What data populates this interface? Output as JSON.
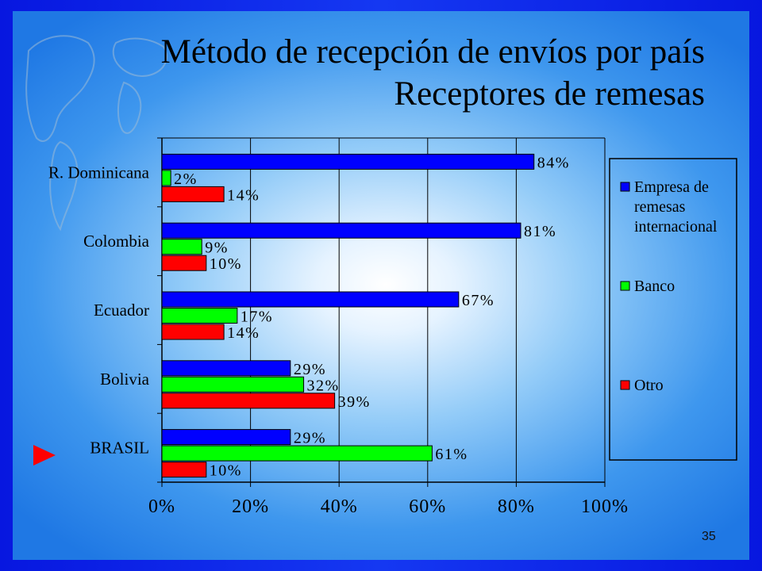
{
  "slide": {
    "title_line1": "Método de recepción de envíos por país",
    "title_line2": "Receptores de remesas",
    "page_number": "35",
    "pointer_icon": "triangle-right-red",
    "pointer_color": "#ff0000"
  },
  "colors": {
    "frame": "#0a1ee8",
    "series": [
      "#0000ff",
      "#00ff00",
      "#ff0000"
    ]
  },
  "chart_data": {
    "type": "bar",
    "orientation": "horizontal",
    "categories": [
      "R. Dominicana",
      "Colombia",
      "Ecuador",
      "Bolivia",
      "BRASIL"
    ],
    "series": [
      {
        "name": "Empresa de remesas internacional",
        "legend_lines": [
          "Empresa de",
          "remesas",
          "internacional"
        ],
        "values": [
          84,
          81,
          67,
          29,
          29
        ],
        "labels": [
          "84%",
          "81%",
          "67%",
          "29%",
          "29%"
        ]
      },
      {
        "name": "Banco",
        "legend_lines": [
          "Banco"
        ],
        "values": [
          2,
          9,
          17,
          32,
          61
        ],
        "labels": [
          "2%",
          "9%",
          "17%",
          "32%",
          "61%"
        ]
      },
      {
        "name": "Otro",
        "legend_lines": [
          "Otro"
        ],
        "values": [
          14,
          10,
          14,
          39,
          10
        ],
        "labels": [
          "14%",
          "10%",
          "14%",
          "39%",
          "10%"
        ]
      }
    ],
    "x_ticks": [
      "0%",
      "20%",
      "40%",
      "60%",
      "80%",
      "100%"
    ],
    "xlim": [
      0,
      100
    ],
    "grid": true,
    "legend_position": "right",
    "title": "",
    "xlabel": "",
    "ylabel": ""
  }
}
